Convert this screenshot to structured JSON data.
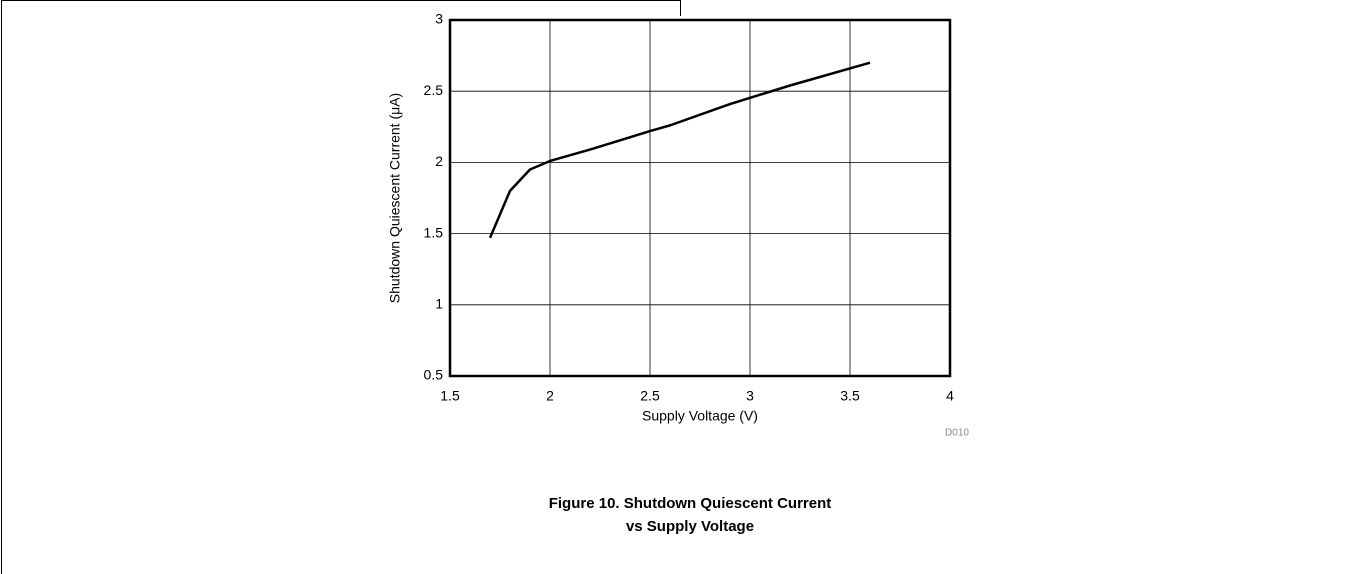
{
  "chart_data": {
    "type": "line",
    "x": [
      1.7,
      1.8,
      1.9,
      2.0,
      2.2,
      2.5,
      2.6,
      2.9,
      3.2,
      3.6
    ],
    "values": [
      1.47,
      1.8,
      1.95,
      2.01,
      2.09,
      2.22,
      2.26,
      2.41,
      2.54,
      2.7
    ],
    "color": "#000000",
    "xlabel": "Supply Voltage (V)",
    "ylabel": "Shutdown Quiescent Current (μA)",
    "xlim": [
      1.5,
      4
    ],
    "xticks": [
      1.5,
      2,
      2.5,
      3,
      3.5,
      4
    ],
    "ylim": [
      0.5,
      3
    ],
    "yticks": [
      0.5,
      1,
      1.5,
      2,
      2.5,
      3
    ],
    "grid": true,
    "annotation": "D010",
    "caption": [
      "Figure 10. Shutdown Quiescent Current",
      "vs Supply Voltage"
    ]
  }
}
